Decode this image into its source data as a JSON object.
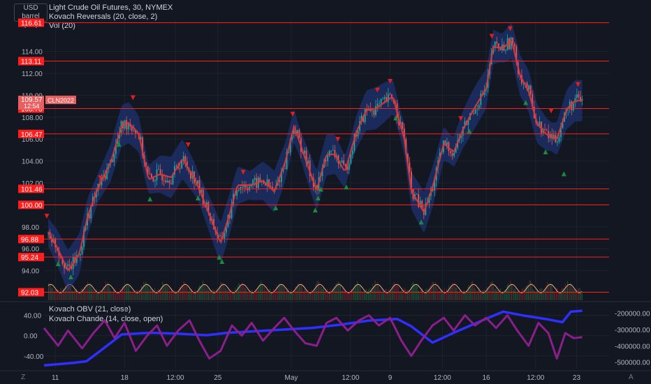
{
  "header": {
    "currency": "USD",
    "unit": "barrel (US)",
    "title": "Light Crude Oil Futures, 30, NYMEX",
    "indicator_1": "Kovach Reversals (20, close, 2)",
    "indicator_2": "Vol (20)",
    "lower_indicator_1": "Kovach OBV (21, close)",
    "lower_indicator_2": "Kovach Chande (14, close, open)",
    "corner_left": "Z",
    "corner_right": "A"
  },
  "chart_data": [
    {
      "type": "candlestick",
      "symbol": "CLN2022",
      "timeframe": "30",
      "exchange": "NYMEX",
      "y_axis_ticks": [
        94.0,
        96.0,
        98.0,
        100.0,
        102.0,
        104.0,
        106.0,
        108.0,
        110.0,
        112.0,
        114.0
      ],
      "ylim": [
        91.3,
        116.9
      ],
      "x_axis_ticks": [
        "11",
        "18",
        "12:00",
        "25",
        "May",
        "12:00",
        "9",
        "12:00",
        "16",
        "12:00",
        "23"
      ],
      "x_tick_positions": [
        0.3,
        5.2,
        8.8,
        11.8,
        17.0,
        21.2,
        24.0,
        27.7,
        30.8,
        34.3,
        37.2
      ],
      "x_range": [
        -0.5,
        39.5
      ],
      "horizontal_levels": [
        {
          "price": 116.61,
          "label": "116.61"
        },
        {
          "price": 113.11,
          "label": "113.11"
        },
        {
          "price": 108.78,
          "label": "108.78"
        },
        {
          "price": 106.47,
          "label": "106.47"
        },
        {
          "price": 101.46,
          "label": "101.46"
        },
        {
          "price": 100.0,
          "label": "100.00"
        },
        {
          "price": 96.88,
          "label": "96.88"
        },
        {
          "price": 95.24,
          "label": "95.24"
        },
        {
          "price": 92.03,
          "label": "92.03"
        }
      ],
      "current_price": {
        "price": 109.57,
        "label": "109.57",
        "countdown": "12:54",
        "symbol_label": "CLN2022"
      },
      "price_path": [
        {
          "x": -0.2,
          "y": 97.5
        },
        {
          "x": 0.4,
          "y": 96.2
        },
        {
          "x": 1.2,
          "y": 94.0
        },
        {
          "x": 2.0,
          "y": 95.5
        },
        {
          "x": 2.6,
          "y": 99.0
        },
        {
          "x": 3.3,
          "y": 101.5
        },
        {
          "x": 4.2,
          "y": 103.8
        },
        {
          "x": 5.0,
          "y": 107.2
        },
        {
          "x": 5.5,
          "y": 107.5
        },
        {
          "x": 6.2,
          "y": 106.5
        },
        {
          "x": 6.9,
          "y": 102.3
        },
        {
          "x": 7.7,
          "y": 102.8
        },
        {
          "x": 8.5,
          "y": 102.5
        },
        {
          "x": 9.3,
          "y": 104.2
        },
        {
          "x": 10.2,
          "y": 102.3
        },
        {
          "x": 11.0,
          "y": 99.8
        },
        {
          "x": 12.0,
          "y": 96.5
        },
        {
          "x": 12.6,
          "y": 99.0
        },
        {
          "x": 13.2,
          "y": 101.8
        },
        {
          "x": 14.2,
          "y": 101.8
        },
        {
          "x": 15.0,
          "y": 102.2
        },
        {
          "x": 15.8,
          "y": 101.2
        },
        {
          "x": 16.6,
          "y": 104.0
        },
        {
          "x": 17.2,
          "y": 107.2
        },
        {
          "x": 18.0,
          "y": 104.2
        },
        {
          "x": 18.8,
          "y": 101.3
        },
        {
          "x": 19.5,
          "y": 104.6
        },
        {
          "x": 20.1,
          "y": 104.6
        },
        {
          "x": 20.8,
          "y": 103.0
        },
        {
          "x": 21.6,
          "y": 106.6
        },
        {
          "x": 22.3,
          "y": 108.6
        },
        {
          "x": 23.0,
          "y": 108.8
        },
        {
          "x": 24.2,
          "y": 109.9
        },
        {
          "x": 25.0,
          "y": 106.0
        },
        {
          "x": 25.5,
          "y": 101.3
        },
        {
          "x": 26.4,
          "y": 99.3
        },
        {
          "x": 27.0,
          "y": 101.6
        },
        {
          "x": 27.8,
          "y": 105.6
        },
        {
          "x": 28.5,
          "y": 104.8
        },
        {
          "x": 29.2,
          "y": 107.0
        },
        {
          "x": 30.0,
          "y": 108.9
        },
        {
          "x": 30.8,
          "y": 110.6
        },
        {
          "x": 31.3,
          "y": 114.4
        },
        {
          "x": 32.0,
          "y": 114.3
        },
        {
          "x": 32.6,
          "y": 115.0
        },
        {
          "x": 33.2,
          "y": 111.8
        },
        {
          "x": 33.8,
          "y": 110.4
        },
        {
          "x": 34.4,
          "y": 107.4
        },
        {
          "x": 35.1,
          "y": 106.4
        },
        {
          "x": 35.8,
          "y": 106.0
        },
        {
          "x": 36.5,
          "y": 108.7
        },
        {
          "x": 37.1,
          "y": 109.5
        }
      ],
      "reversal_up_markers": [
        {
          "x": 0.5,
          "y": 94.6
        },
        {
          "x": 1.4,
          "y": 93.4
        },
        {
          "x": 4.8,
          "y": 105.5
        },
        {
          "x": 7.0,
          "y": 100.5
        },
        {
          "x": 10.4,
          "y": 100.6
        },
        {
          "x": 11.9,
          "y": 95.2
        },
        {
          "x": 12.1,
          "y": 94.8
        },
        {
          "x": 15.9,
          "y": 99.7
        },
        {
          "x": 18.7,
          "y": 99.5
        },
        {
          "x": 18.9,
          "y": 100.6
        },
        {
          "x": 19.1,
          "y": 101.4
        },
        {
          "x": 20.9,
          "y": 101.6
        },
        {
          "x": 24.4,
          "y": 107.9
        },
        {
          "x": 26.2,
          "y": 98.4
        },
        {
          "x": 29.6,
          "y": 106.7
        },
        {
          "x": 33.6,
          "y": 109.3
        },
        {
          "x": 35.0,
          "y": 104.8
        },
        {
          "x": 36.3,
          "y": 102.8
        }
      ],
      "reversal_down_markers": [
        {
          "x": -0.3,
          "y": 99.0
        },
        {
          "x": 3.5,
          "y": 102.5
        },
        {
          "x": 5.8,
          "y": 109.8
        },
        {
          "x": 9.7,
          "y": 105.5
        },
        {
          "x": 13.6,
          "y": 103.0
        },
        {
          "x": 17.1,
          "y": 108.3
        },
        {
          "x": 20.3,
          "y": 106.0
        },
        {
          "x": 23.1,
          "y": 110.5
        },
        {
          "x": 24.0,
          "y": 111.3
        },
        {
          "x": 29.0,
          "y": 107.9
        },
        {
          "x": 31.2,
          "y": 115.4
        },
        {
          "x": 32.5,
          "y": 116.1
        },
        {
          "x": 35.4,
          "y": 108.6
        },
        {
          "x": 37.3,
          "y": 111.0
        }
      ],
      "volume_panel": {
        "label": "Vol (20)",
        "cycle_periods": 28
      }
    },
    {
      "type": "line",
      "title": "Kovach OBV (21, close) / Kovach Chande (14, close, open)",
      "left_axis_ticks": [
        40.0,
        0.0,
        -40.0
      ],
      "right_axis_ticks": [
        -200000.0,
        -300000.0,
        -400000.0,
        -500000.0
      ],
      "right_axis_labels": [
        "-200000.00",
        "-300000.00",
        "-400000.00",
        "-500000.00"
      ],
      "left_ylim": [
        -65,
        60
      ],
      "right_ylim": [
        -540000,
        -150000
      ],
      "series": [
        {
          "key": "obv",
          "axis": "right",
          "color": "#2f2fff",
          "points": [
            {
              "x": -0.5,
              "y": -520000
            },
            {
              "x": 1.5,
              "y": -505000
            },
            {
              "x": 2.5,
              "y": -495000
            },
            {
              "x": 3.5,
              "y": -430000
            },
            {
              "x": 5.0,
              "y": -330000
            },
            {
              "x": 7.0,
              "y": -320000
            },
            {
              "x": 9.0,
              "y": -325000
            },
            {
              "x": 11.0,
              "y": -335000
            },
            {
              "x": 12.5,
              "y": -320000
            },
            {
              "x": 14.5,
              "y": -310000
            },
            {
              "x": 16.5,
              "y": -300000
            },
            {
              "x": 18.5,
              "y": -290000
            },
            {
              "x": 20.5,
              "y": -270000
            },
            {
              "x": 22.5,
              "y": -245000
            },
            {
              "x": 24.5,
              "y": -235000
            },
            {
              "x": 25.5,
              "y": -280000
            },
            {
              "x": 27.0,
              "y": -380000
            },
            {
              "x": 28.5,
              "y": -320000
            },
            {
              "x": 30.5,
              "y": -245000
            },
            {
              "x": 32.0,
              "y": -190000
            },
            {
              "x": 33.5,
              "y": -215000
            },
            {
              "x": 35.0,
              "y": -235000
            },
            {
              "x": 36.2,
              "y": -255000
            },
            {
              "x": 36.8,
              "y": -190000
            },
            {
              "x": 37.6,
              "y": -185000
            }
          ]
        },
        {
          "key": "chande",
          "axis": "left",
          "color": "#8a1f8a",
          "points": [
            {
              "x": -0.5,
              "y": 15
            },
            {
              "x": 0.5,
              "y": -20
            },
            {
              "x": 1.2,
              "y": 10
            },
            {
              "x": 2.2,
              "y": -25
            },
            {
              "x": 3.0,
              "y": 5
            },
            {
              "x": 3.8,
              "y": 30
            },
            {
              "x": 4.5,
              "y": -5
            },
            {
              "x": 5.2,
              "y": 25
            },
            {
              "x": 6.0,
              "y": -30
            },
            {
              "x": 6.8,
              "y": 0
            },
            {
              "x": 7.5,
              "y": 20
            },
            {
              "x": 8.2,
              "y": -20
            },
            {
              "x": 9.0,
              "y": 10
            },
            {
              "x": 9.8,
              "y": 30
            },
            {
              "x": 10.5,
              "y": -10
            },
            {
              "x": 11.2,
              "y": -45
            },
            {
              "x": 12.0,
              "y": -30
            },
            {
              "x": 12.8,
              "y": 20
            },
            {
              "x": 13.5,
              "y": 0
            },
            {
              "x": 14.2,
              "y": 25
            },
            {
              "x": 15.0,
              "y": -10
            },
            {
              "x": 15.8,
              "y": 15
            },
            {
              "x": 16.5,
              "y": 35
            },
            {
              "x": 17.2,
              "y": 10
            },
            {
              "x": 18.0,
              "y": -15
            },
            {
              "x": 18.8,
              "y": -20
            },
            {
              "x": 19.5,
              "y": 25
            },
            {
              "x": 20.2,
              "y": 35
            },
            {
              "x": 21.0,
              "y": 10
            },
            {
              "x": 21.8,
              "y": 30
            },
            {
              "x": 22.5,
              "y": 40
            },
            {
              "x": 23.2,
              "y": 20
            },
            {
              "x": 24.0,
              "y": 35
            },
            {
              "x": 24.8,
              "y": -10
            },
            {
              "x": 25.5,
              "y": -40
            },
            {
              "x": 26.2,
              "y": -10
            },
            {
              "x": 27.0,
              "y": 20
            },
            {
              "x": 27.8,
              "y": 35
            },
            {
              "x": 28.5,
              "y": 10
            },
            {
              "x": 29.3,
              "y": 40
            },
            {
              "x": 30.0,
              "y": 20
            },
            {
              "x": 30.8,
              "y": 35
            },
            {
              "x": 31.5,
              "y": 15
            },
            {
              "x": 32.3,
              "y": 40
            },
            {
              "x": 33.0,
              "y": 10
            },
            {
              "x": 33.8,
              "y": -20
            },
            {
              "x": 34.5,
              "y": 25
            },
            {
              "x": 35.2,
              "y": 5
            },
            {
              "x": 35.8,
              "y": -45
            },
            {
              "x": 36.4,
              "y": 5
            },
            {
              "x": 37.0,
              "y": -5
            },
            {
              "x": 37.6,
              "y": -3
            }
          ]
        }
      ]
    }
  ]
}
